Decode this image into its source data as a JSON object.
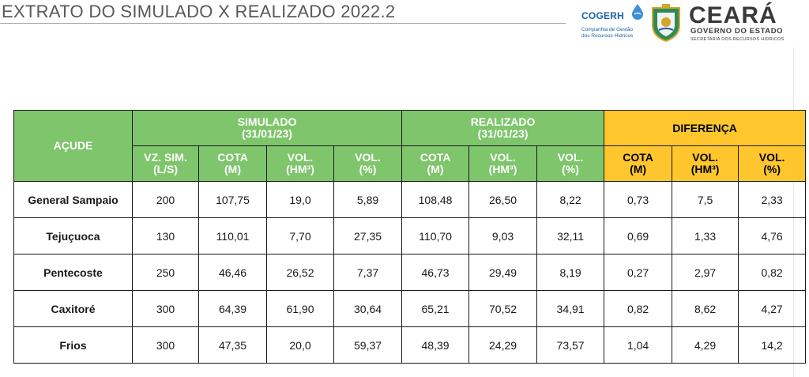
{
  "title": "EXTRATO DO SIMULADO X REALIZADO 2022.2",
  "logos": {
    "cogerh_name": "COGERH",
    "cogerh_tagline_1": "Companhia de Gestão",
    "cogerh_tagline_2": "dos Recursos Hídricos",
    "ceara_name": "CEARÁ",
    "ceara_gov": "GOVERNO DO ESTADO",
    "ceara_secretariat": "SECRETARIA DOS RECURSOS HÍDRICOS",
    "colors": {
      "cogerh_blue": "#1c5fa8",
      "seal_green": "#2e8b57",
      "seal_gold": "#d4a62a"
    }
  },
  "table": {
    "colors": {
      "green_header": "#7ec56b",
      "yellow_header": "#ffc62e"
    },
    "header": {
      "acude": "AÇUDE",
      "simulado": {
        "line1": "SIMULADO",
        "line2": "(31/01/23)"
      },
      "realizado": {
        "line1": "REALIZADO",
        "line2": "(31/01/23)"
      },
      "diferenca": "DIFERENÇA",
      "sub": [
        {
          "l1": "VZ. SIM.",
          "l2": "(L/S)"
        },
        {
          "l1": "COTA",
          "l2": "(M)"
        },
        {
          "l1": "VOL.",
          "l2": "(HM³)"
        },
        {
          "l1": "VOL.",
          "l2": "(%)"
        },
        {
          "l1": "COTA",
          "l2": "(M)"
        },
        {
          "l1": "VOL.",
          "l2": "(HM³)"
        },
        {
          "l1": "VOL.",
          "l2": "(%)"
        },
        {
          "l1": "COTA",
          "l2": "(M)"
        },
        {
          "l1": "VOL.",
          "l2": "(HM³)"
        },
        {
          "l1": "VOL.",
          "l2": "(%)"
        }
      ]
    },
    "rows": [
      {
        "name": "General Sampaio",
        "cells": [
          "200",
          "107,75",
          "19,0",
          "5,89",
          "108,48",
          "26,50",
          "8,22",
          "0,73",
          "7,5",
          "2,33"
        ]
      },
      {
        "name": "Tejuçuoca",
        "cells": [
          "130",
          "110,01",
          "7,70",
          "27,35",
          "110,70",
          "9,03",
          "32,11",
          "0,69",
          "1,33",
          "4,76"
        ]
      },
      {
        "name": "Pentecoste",
        "cells": [
          "250",
          "46,46",
          "26,52",
          "7,37",
          "46,73",
          "29,49",
          "8,19",
          "0,27",
          "2,97",
          "0,82"
        ]
      },
      {
        "name": "Caxitoré",
        "cells": [
          "300",
          "64,39",
          "61,90",
          "30,64",
          "65,21",
          "70,52",
          "34,91",
          "0,82",
          "8,62",
          "4,27"
        ]
      },
      {
        "name": "Frios",
        "cells": [
          "300",
          "47,35",
          "20,0",
          "59,37",
          "48,39",
          "24,29",
          "73,57",
          "1,04",
          "4,29",
          "14,2"
        ]
      }
    ]
  }
}
